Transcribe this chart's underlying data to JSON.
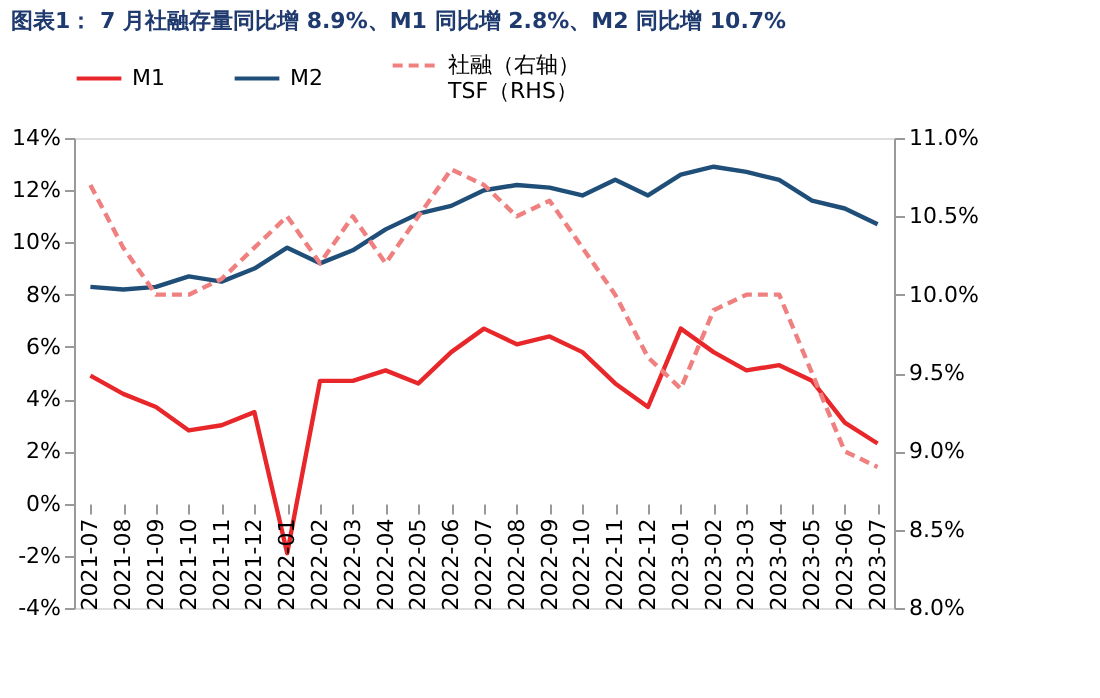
{
  "chart_data": {
    "type": "line",
    "title": "图表1： 7 月社融存量同比增 8.9%、M1 同比增 2.8%、M2 同比增 10.7%",
    "categories": [
      "2021-07",
      "2021-08",
      "2021-09",
      "2021-10",
      "2021-11",
      "2021-12",
      "2022-01",
      "2022-02",
      "2022-03",
      "2022-04",
      "2022-05",
      "2022-06",
      "2022-07",
      "2022-08",
      "2022-09",
      "2022-10",
      "2022-11",
      "2022-12",
      "2023-01",
      "2023-02",
      "2023-03",
      "2023-04",
      "2023-05",
      "2023-06",
      "2023-07"
    ],
    "series": [
      {
        "name": "M1",
        "color": "#e8272a",
        "line_style": "solid",
        "values": [
          4.9,
          4.2,
          3.7,
          2.8,
          3.0,
          3.5,
          -1.9,
          4.7,
          4.7,
          5.1,
          4.6,
          5.8,
          6.7,
          6.1,
          6.4,
          5.8,
          4.6,
          3.7,
          6.7,
          5.8,
          5.1,
          5.3,
          4.7,
          3.1,
          2.3
        ]
      },
      {
        "name": "M2",
        "color": "#1f4e79",
        "line_style": "solid",
        "values": [
          8.3,
          8.2,
          8.3,
          8.7,
          8.5,
          9.0,
          9.8,
          9.2,
          9.7,
          10.5,
          11.1,
          11.4,
          12.0,
          12.2,
          12.1,
          11.8,
          12.4,
          11.8,
          12.6,
          12.9,
          12.7,
          12.4,
          11.6,
          11.3,
          10.7
        ]
      },
      {
        "name": "社融（右轴）\nTSF（RHS）",
        "color": "#f08080",
        "line_style": "dashed",
        "axis": "y2",
        "values": [
          10.7,
          10.3,
          10.0,
          10.0,
          10.1,
          10.3,
          10.5,
          10.2,
          10.5,
          10.2,
          10.5,
          10.8,
          10.7,
          10.5,
          10.6,
          10.3,
          10.0,
          9.6,
          9.4,
          9.9,
          10.0,
          10.0,
          9.5,
          9.0,
          8.9
        ]
      }
    ],
    "ylim": [
      -4,
      14
    ],
    "yticks": [
      {
        "value": -4,
        "label": "-4%"
      },
      {
        "value": -2,
        "label": "-2%"
      },
      {
        "value": 0,
        "label": "0%"
      },
      {
        "value": 2,
        "label": "2%"
      },
      {
        "value": 4,
        "label": "4%"
      },
      {
        "value": 6,
        "label": "6%"
      },
      {
        "value": 8,
        "label": "8%"
      },
      {
        "value": 10,
        "label": "10%"
      },
      {
        "value": 12,
        "label": "12%"
      },
      {
        "value": 14,
        "label": "14%"
      }
    ],
    "y2lim": [
      8.0,
      11.0
    ],
    "y2ticks": [
      {
        "value": 8.0,
        "label": "8.0%"
      },
      {
        "value": 8.5,
        "label": "8.5%"
      },
      {
        "value": 9.0,
        "label": "9.0%"
      },
      {
        "value": 9.5,
        "label": "9.5%"
      },
      {
        "value": 10.0,
        "label": "10.0%"
      },
      {
        "value": 10.5,
        "label": "10.5%"
      },
      {
        "value": 11.0,
        "label": "11.0%"
      }
    ],
    "grid": false,
    "legend": "top"
  }
}
